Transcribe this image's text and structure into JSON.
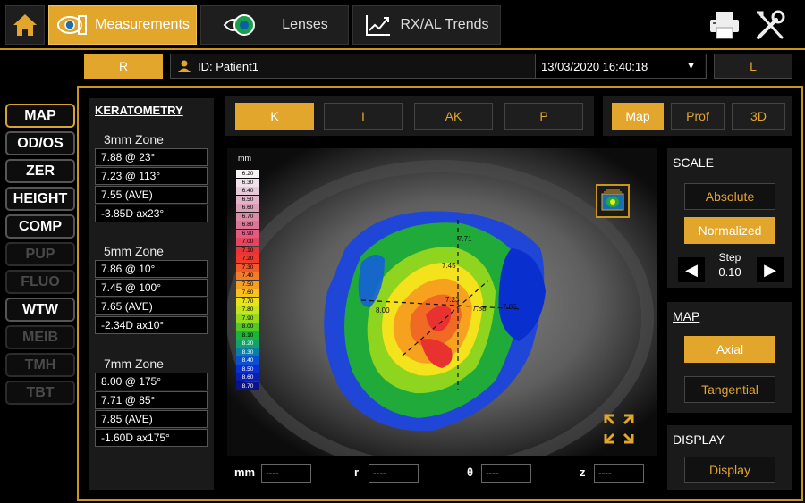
{
  "nav": {
    "tabs": [
      {
        "label": "Measurements",
        "icon": "eye-measure-icon",
        "active": true
      },
      {
        "label": "Lenses",
        "icon": "lens-icon",
        "active": false
      },
      {
        "label": "RX/AL Trends",
        "icon": "trend-chart-icon",
        "active": false
      }
    ]
  },
  "patient": {
    "right_eye": "R",
    "left_eye": "L",
    "id_label": "ID: Patient1",
    "datetime": "13/03/2020 16:40:18"
  },
  "side_menu": [
    {
      "label": "MAP",
      "enabled": true,
      "active": true
    },
    {
      "label": "OD/OS",
      "enabled": true
    },
    {
      "label": "ZER",
      "enabled": true
    },
    {
      "label": "HEIGHT",
      "enabled": true
    },
    {
      "label": "COMP",
      "enabled": true
    },
    {
      "label": "PUP",
      "enabled": false
    },
    {
      "label": "FLUO",
      "enabled": false
    },
    {
      "label": "WTW",
      "enabled": true
    },
    {
      "label": "MEIB",
      "enabled": false
    },
    {
      "label": "TMH",
      "enabled": false
    },
    {
      "label": "TBT",
      "enabled": false
    }
  ],
  "keratometry": {
    "title": "KERATOMETRY",
    "zones": [
      {
        "name": "3mm Zone",
        "values": [
          "7.88  @ 23°",
          "7.23  @ 113°",
          "7.55 (AVE)",
          "-3.85D ax23°"
        ]
      },
      {
        "name": "5mm Zone",
        "values": [
          "7.86  @ 10°",
          "7.45  @ 100°",
          "7.65 (AVE)",
          "-2.34D ax10°"
        ]
      },
      {
        "name": "7mm Zone",
        "values": [
          "8.00  @ 175°",
          "7.71  @ 85°",
          "7.85 (AVE)",
          "-1.60D ax175°"
        ]
      }
    ]
  },
  "map_types": [
    "K",
    "I",
    "AK",
    "P"
  ],
  "view_modes": [
    "Map",
    "Prof",
    "3D"
  ],
  "scale": {
    "title": "SCALE",
    "absolute": "Absolute",
    "normalized": "Normalized",
    "step_label": "Step",
    "step_value": "0.10"
  },
  "map_panel": {
    "title": "MAP",
    "axial": "Axial",
    "tangential": "Tangential"
  },
  "display_panel": {
    "title": "DISPLAY",
    "button": "Display"
  },
  "colorbar": {
    "unit": "mm",
    "levels": [
      "6.20",
      "6.30",
      "6.40",
      "6.50",
      "6.60",
      "6.70",
      "6.80",
      "6.90",
      "7.00",
      "7.10",
      "7.20",
      "7.30",
      "7.40",
      "7.50",
      "7.60",
      "7.70",
      "7.80",
      "7.90",
      "8.00",
      "8.10",
      "8.20",
      "8.30",
      "8.40",
      "8.50",
      "8.60",
      "8.70"
    ],
    "colors": [
      "#f7f2f5",
      "#efe2ea",
      "#e6cad8",
      "#e0b3c6",
      "#dc9fb7",
      "#dc8aa6",
      "#dc7596",
      "#e05c82",
      "#e6455f",
      "#e83535",
      "#ef3a2e",
      "#f25a2a",
      "#f47c28",
      "#f79e24",
      "#f9c21e",
      "#e9e31a",
      "#c7e51c",
      "#94db1e",
      "#52c82a",
      "#1db23a",
      "#14a06a",
      "#0a7ea8",
      "#0a4fd0",
      "#0a2fcf",
      "#0a1fb0",
      "#0a1488"
    ]
  },
  "map_annotations": [
    "7.71",
    "7.45",
    "7.23",
    "8.00",
    "7.88",
    "7.86"
  ],
  "coords": {
    "mm": "mm",
    "r": "r",
    "theta": "θ",
    "z": "z",
    "placeholder": "----"
  }
}
